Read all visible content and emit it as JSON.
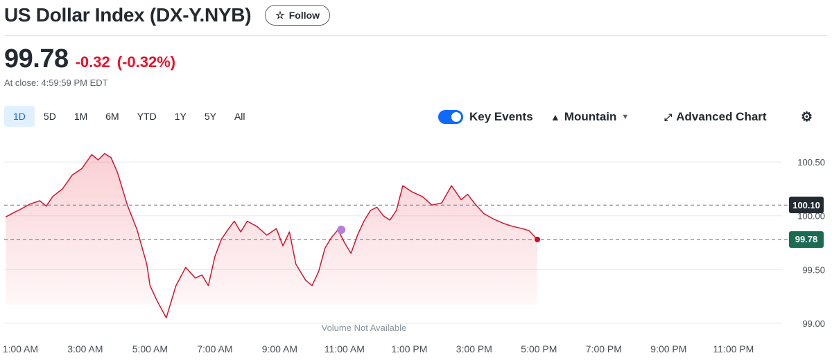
{
  "header": {
    "title": "US Dollar Index (DX-Y.NYB)",
    "follow_icon": "star-icon",
    "follow_label": "Follow"
  },
  "quote": {
    "price": "99.78",
    "change": "-0.32",
    "change_pct": "(-0.32%)",
    "close_time": "At close: 4:59:59 PM EDT"
  },
  "range_tabs": [
    "1D",
    "5D",
    "1M",
    "6M",
    "YTD",
    "1Y",
    "5Y",
    "All"
  ],
  "active_range": "1D",
  "toolbar": {
    "key_events_label": "Key Events",
    "key_events_enabled": true,
    "chart_type_icon": "mountain-icon",
    "chart_type_label": "Mountain",
    "advanced_icon": "expand-arrows-icon",
    "advanced_label": "Advanced Chart",
    "settings_icon": "gear-icon"
  },
  "colors": {
    "negative": "#eb0f29",
    "line": "#d0162e",
    "accent": "#0f69ff",
    "prev_close_badge": "#232a31",
    "current_badge": "#1b6b53",
    "key_event_dot": "#b57edc"
  },
  "chart_data": {
    "type": "area",
    "xlabel": "",
    "ylabel": "",
    "x_ticks": [
      "1:00 AM",
      "3:00 AM",
      "5:00 AM",
      "7:00 AM",
      "9:00 AM",
      "11:00 AM",
      "1:00 PM",
      "3:00 PM",
      "5:00 PM",
      "7:00 PM",
      "9:00 PM",
      "11:00 PM"
    ],
    "y_ticks": [
      "100.50",
      "100.00",
      "99.50",
      "99.00"
    ],
    "ylim": [
      98.98,
      100.72
    ],
    "x_range_hours": [
      0.5,
      24.5
    ],
    "grid": true,
    "annotation": "Volume Not Available",
    "previous_close": "100.10",
    "last_price": "99.78",
    "key_event": {
      "time_hour": 10.9,
      "value": 99.87
    },
    "series": [
      {
        "values_time_hours": [
          0.55,
          0.8,
          1.0,
          1.3,
          1.6,
          1.8,
          2.0,
          2.3,
          2.6,
          2.9,
          3.2,
          3.4,
          3.6,
          3.8,
          4.0,
          4.3,
          4.6,
          4.9,
          5.0,
          5.2,
          5.5,
          5.8,
          6.1,
          6.4,
          6.6,
          6.8,
          7.0,
          7.2,
          7.4,
          7.6,
          7.8,
          8.0,
          8.3,
          8.6,
          8.9,
          9.1,
          9.3,
          9.5,
          9.8,
          10.0,
          10.2,
          10.4,
          10.6,
          10.8,
          11.0,
          11.2,
          11.4,
          11.6,
          11.8,
          12.0,
          12.2,
          12.4,
          12.6,
          12.8,
          13.1,
          13.4,
          13.7,
          14.0,
          14.3,
          14.6,
          14.8,
          15.0,
          15.3,
          15.6,
          15.9,
          16.2,
          16.5,
          16.7,
          16.95
        ],
        "values": [
          99.99,
          100.03,
          100.06,
          100.11,
          100.14,
          100.09,
          100.18,
          100.25,
          100.38,
          100.44,
          100.57,
          100.52,
          100.58,
          100.54,
          100.4,
          100.1,
          99.87,
          99.55,
          99.35,
          99.22,
          99.05,
          99.35,
          99.52,
          99.42,
          99.45,
          99.35,
          99.62,
          99.78,
          99.87,
          99.95,
          99.85,
          99.95,
          99.9,
          99.82,
          99.88,
          99.72,
          99.85,
          99.55,
          99.4,
          99.35,
          99.48,
          99.7,
          99.8,
          99.87,
          99.75,
          99.65,
          99.82,
          99.95,
          100.05,
          100.08,
          100.0,
          99.96,
          100.05,
          100.28,
          100.22,
          100.18,
          100.1,
          100.12,
          100.28,
          100.15,
          100.2,
          100.12,
          100.02,
          99.97,
          99.93,
          99.9,
          99.88,
          99.86,
          99.78
        ]
      }
    ]
  }
}
